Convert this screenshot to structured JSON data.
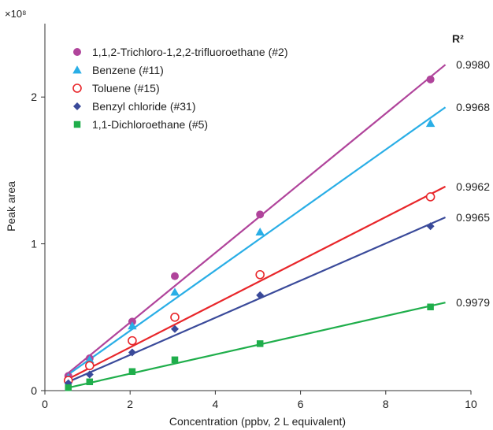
{
  "chart_data": {
    "type": "scatter",
    "xlabel": "Concentration (ppbv, 2 L equivalent)",
    "ylabel": "Peak area",
    "y_multiplier": "×10⁸",
    "xlim": [
      0,
      10
    ],
    "ylim": [
      0,
      2.5
    ],
    "x_ticks": [
      0,
      2,
      4,
      6,
      8,
      10
    ],
    "y_ticks": [
      0,
      1,
      2
    ],
    "grid": false,
    "legend_position": "top-left",
    "r2_header": "R²",
    "series": [
      {
        "name": "1,1,2-Trichloro-1,2,2-trifluoroethane (#2)",
        "marker": "circle-filled",
        "color": "#b0449b",
        "x": [
          0.55,
          1.05,
          2.05,
          3.05,
          5.05,
          9.05
        ],
        "y": [
          0.1,
          0.22,
          0.47,
          0.78,
          1.2,
          2.12
        ],
        "fit_line": {
          "x": [
            0.55,
            9.4
          ],
          "y": [
            0.12,
            2.22
          ]
        },
        "r2": "0.9980"
      },
      {
        "name": "Benzene (#11)",
        "marker": "triangle-filled",
        "color": "#29aee6",
        "x": [
          0.55,
          1.05,
          2.05,
          3.05,
          5.05,
          9.05
        ],
        "y": [
          0.09,
          0.21,
          0.44,
          0.67,
          1.08,
          1.82
        ],
        "fit_line": {
          "x": [
            0.55,
            9.4
          ],
          "y": [
            0.11,
            1.93
          ]
        },
        "r2": "0.9968"
      },
      {
        "name": "Toluene (#15)",
        "marker": "circle-open",
        "color": "#e8262a",
        "x": [
          0.55,
          1.05,
          2.05,
          3.05,
          5.05,
          9.05
        ],
        "y": [
          0.07,
          0.17,
          0.34,
          0.5,
          0.79,
          1.32
        ],
        "fit_line": {
          "x": [
            0.55,
            9.4
          ],
          "y": [
            0.08,
            1.39
          ]
        },
        "r2": "0.9962"
      },
      {
        "name": "Benzyl chloride (#31)",
        "marker": "diamond-filled",
        "color": "#3a4a9a",
        "x": [
          0.55,
          1.05,
          2.05,
          3.05,
          5.05,
          9.05
        ],
        "y": [
          0.05,
          0.11,
          0.26,
          0.42,
          0.65,
          1.12
        ],
        "fit_line": {
          "x": [
            0.55,
            9.4
          ],
          "y": [
            0.06,
            1.18
          ]
        },
        "r2": "0.9965"
      },
      {
        "name": "1,1-Dichloroethane (#5)",
        "marker": "square-filled",
        "color": "#1fae4b",
        "x": [
          0.55,
          1.05,
          2.05,
          3.05,
          5.05,
          9.05
        ],
        "y": [
          0.02,
          0.06,
          0.13,
          0.21,
          0.32,
          0.57
        ],
        "fit_line": {
          "x": [
            0.55,
            9.4
          ],
          "y": [
            0.02,
            0.6
          ]
        },
        "r2": "0.9979"
      }
    ]
  }
}
